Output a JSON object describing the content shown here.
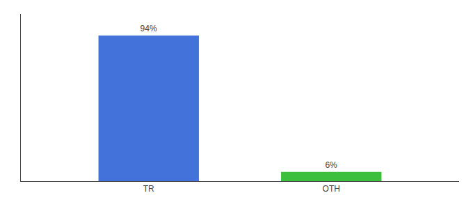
{
  "chart_data": {
    "type": "bar",
    "categories": [
      "TR",
      "OTH"
    ],
    "values": [
      94,
      6
    ],
    "value_labels": [
      "94%",
      "6%"
    ],
    "colors": [
      "#4472db",
      "#3cbf3c"
    ],
    "ylim": [
      0,
      108
    ],
    "grid": false,
    "data_labels": true,
    "tick_labels": "x"
  }
}
